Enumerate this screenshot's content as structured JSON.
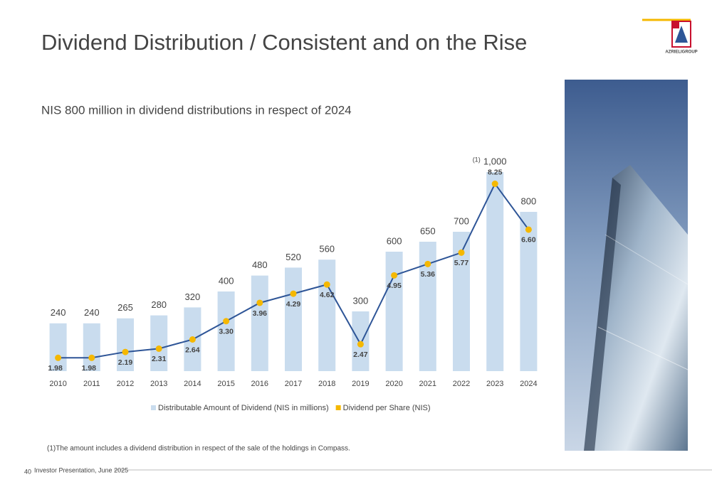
{
  "header": {
    "title": "Dividend Distribution / Consistent and on the Rise",
    "logo_text": "AZRIELIGROUP"
  },
  "chart_data": {
    "type": "bar-line",
    "subtitle": "NIS 800 million in dividend distributions in respect of 2024",
    "categories": [
      "2010",
      "2011",
      "2012",
      "2013",
      "2014",
      "2015",
      "2016",
      "2017",
      "2018",
      "2019",
      "2020",
      "2021",
      "2022",
      "2023",
      "2024"
    ],
    "series": [
      {
        "name": "Distributable Amount of Dividend (NIS in millions)",
        "type": "bar",
        "color": "#c9dcee",
        "values": [
          240,
          240,
          265,
          280,
          320,
          400,
          480,
          520,
          560,
          300,
          600,
          650,
          700,
          1000,
          800
        ],
        "value_labels": [
          "240",
          "240",
          "265",
          "280",
          "320",
          "400",
          "480",
          "520",
          "560",
          "300",
          "600",
          "650",
          "700",
          "1,000",
          "800"
        ]
      },
      {
        "name": "Dividend per Share (NIS)",
        "type": "line",
        "axis": "y2",
        "color": "#2e5597",
        "marker_color": "#f5b800",
        "values": [
          1.98,
          1.98,
          2.19,
          2.31,
          2.64,
          3.3,
          3.96,
          4.29,
          4.62,
          2.47,
          4.95,
          5.36,
          5.77,
          8.25,
          6.6
        ],
        "value_labels": [
          "1.98",
          "1.98",
          "2.19",
          "2.31",
          "2.64",
          "3.30",
          "3.96",
          "4.29",
          "4.62",
          "2.47",
          "4.95",
          "5.36",
          "5.77",
          "8.25",
          "6.60"
        ]
      }
    ],
    "ylim": [
      0,
      1150
    ],
    "y2lim": [
      1.5,
      9.75
    ],
    "annotation": "(1)",
    "footnote": "(1)The amount includes a dividend distribution in respect of the sale of the holdings in Compass."
  },
  "footer": {
    "page": "40",
    "text": "Investor Presentation, June 2025"
  }
}
